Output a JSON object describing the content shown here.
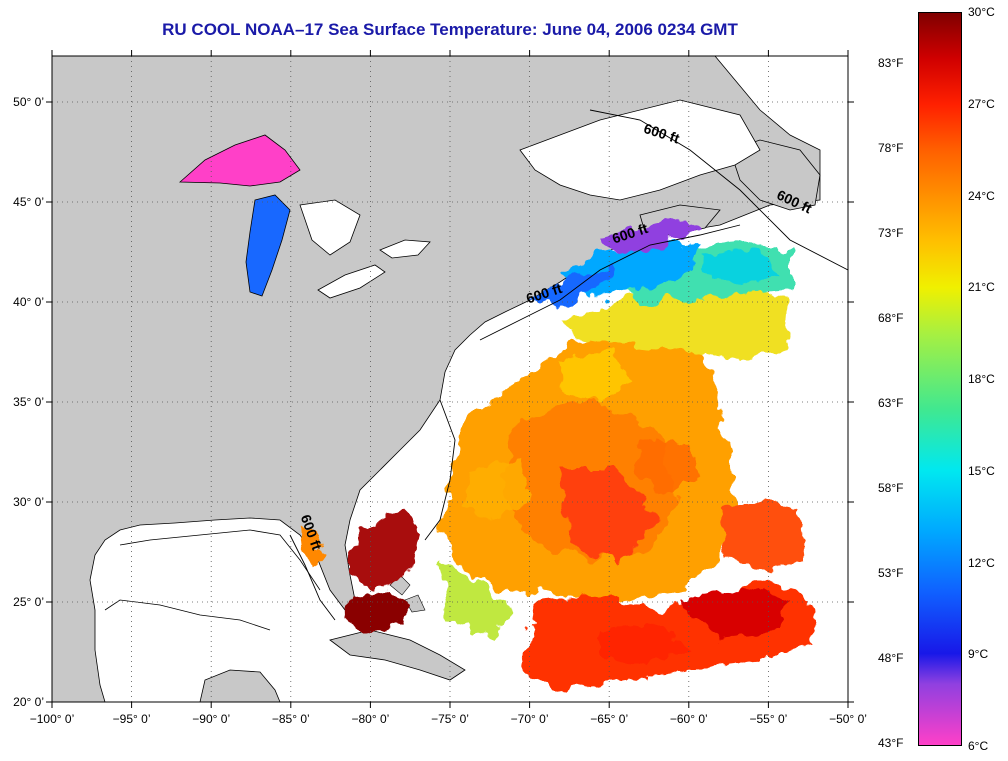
{
  "title": "RU COOL  NOAA–17  Sea Surface Temperature:  June 04, 2006 0234 GMT",
  "map": {
    "lon_range": [
      -100,
      -50
    ],
    "lat_range": [
      20,
      52.3
    ],
    "grid": "dotted",
    "land_color": "#c8c8c8",
    "ocean_missing_color": "#ffffff",
    "lon_ticks": [
      {
        "value": -100,
        "label": "−100° 0’"
      },
      {
        "value": -95,
        "label": "−95° 0’"
      },
      {
        "value": -90,
        "label": "−90° 0’"
      },
      {
        "value": -85,
        "label": "−85° 0’"
      },
      {
        "value": -80,
        "label": "−80° 0’"
      },
      {
        "value": -75,
        "label": "−75° 0’"
      },
      {
        "value": -70,
        "label": "−70° 0’"
      },
      {
        "value": -65,
        "label": "−65° 0’"
      },
      {
        "value": -60,
        "label": "−60° 0’"
      },
      {
        "value": -55,
        "label": "−55° 0’"
      },
      {
        "value": -50,
        "label": "−50° 0’"
      }
    ],
    "lat_ticks": [
      {
        "value": 20,
        "label": "20° 0’"
      },
      {
        "value": 25,
        "label": "25° 0’"
      },
      {
        "value": 30,
        "label": "30° 0’"
      },
      {
        "value": 35,
        "label": "35° 0’"
      },
      {
        "value": 40,
        "label": "40° 0’"
      },
      {
        "value": 45,
        "label": "45° 0’"
      },
      {
        "value": 50,
        "label": "50° 0’"
      }
    ],
    "depth_labels": [
      {
        "text": "600 ft",
        "lon": -61.8,
        "lat": 48.2,
        "rotate": 18
      },
      {
        "text": "600 ft",
        "lon": -53.5,
        "lat": 44.8,
        "rotate": 25
      },
      {
        "text": "600 ft",
        "lon": -63.6,
        "lat": 43.2,
        "rotate": -18
      },
      {
        "text": "600 ft",
        "lon": -69.0,
        "lat": 40.2,
        "rotate": -18
      },
      {
        "text": "600 ft",
        "lon": -84.0,
        "lat": 28.4,
        "rotate": 70
      }
    ]
  },
  "colorbar": {
    "range_c": [
      6,
      30
    ],
    "stops": [
      {
        "c": 6,
        "color": "#ff40c8"
      },
      {
        "c": 8,
        "color": "#9040e0"
      },
      {
        "c": 9,
        "color": "#1818e8"
      },
      {
        "c": 11,
        "color": "#1060ff"
      },
      {
        "c": 13,
        "color": "#00a8ff"
      },
      {
        "c": 15,
        "color": "#00e8f0"
      },
      {
        "c": 17,
        "color": "#40e890"
      },
      {
        "c": 19.5,
        "color": "#a8f040"
      },
      {
        "c": 21,
        "color": "#f0f000"
      },
      {
        "c": 22.5,
        "color": "#ffc000"
      },
      {
        "c": 24,
        "color": "#ff9000"
      },
      {
        "c": 25.5,
        "color": "#ff6000"
      },
      {
        "c": 27,
        "color": "#ff2000"
      },
      {
        "c": 28.5,
        "color": "#d00000"
      },
      {
        "c": 30,
        "color": "#800000"
      }
    ],
    "celsius_labels": [
      {
        "value": 30,
        "label": "30°C"
      },
      {
        "value": 27,
        "label": "27°C"
      },
      {
        "value": 24,
        "label": "24°C"
      },
      {
        "value": 21,
        "label": "21°C"
      },
      {
        "value": 18,
        "label": "18°C"
      },
      {
        "value": 15,
        "label": "15°C"
      },
      {
        "value": 12,
        "label": "12°C"
      },
      {
        "value": 9,
        "label": "9°C"
      },
      {
        "value": 6,
        "label": "6°C"
      }
    ],
    "fahrenheit_labels": [
      {
        "value": 83,
        "label": "83°F"
      },
      {
        "value": 78,
        "label": "78°F"
      },
      {
        "value": 73,
        "label": "73°F"
      },
      {
        "value": 68,
        "label": "68°F"
      },
      {
        "value": 63,
        "label": "63°F"
      },
      {
        "value": 58,
        "label": "58°F"
      },
      {
        "value": 53,
        "label": "53°F"
      },
      {
        "value": 48,
        "label": "48°F"
      },
      {
        "value": 43,
        "label": "43°F"
      }
    ]
  }
}
